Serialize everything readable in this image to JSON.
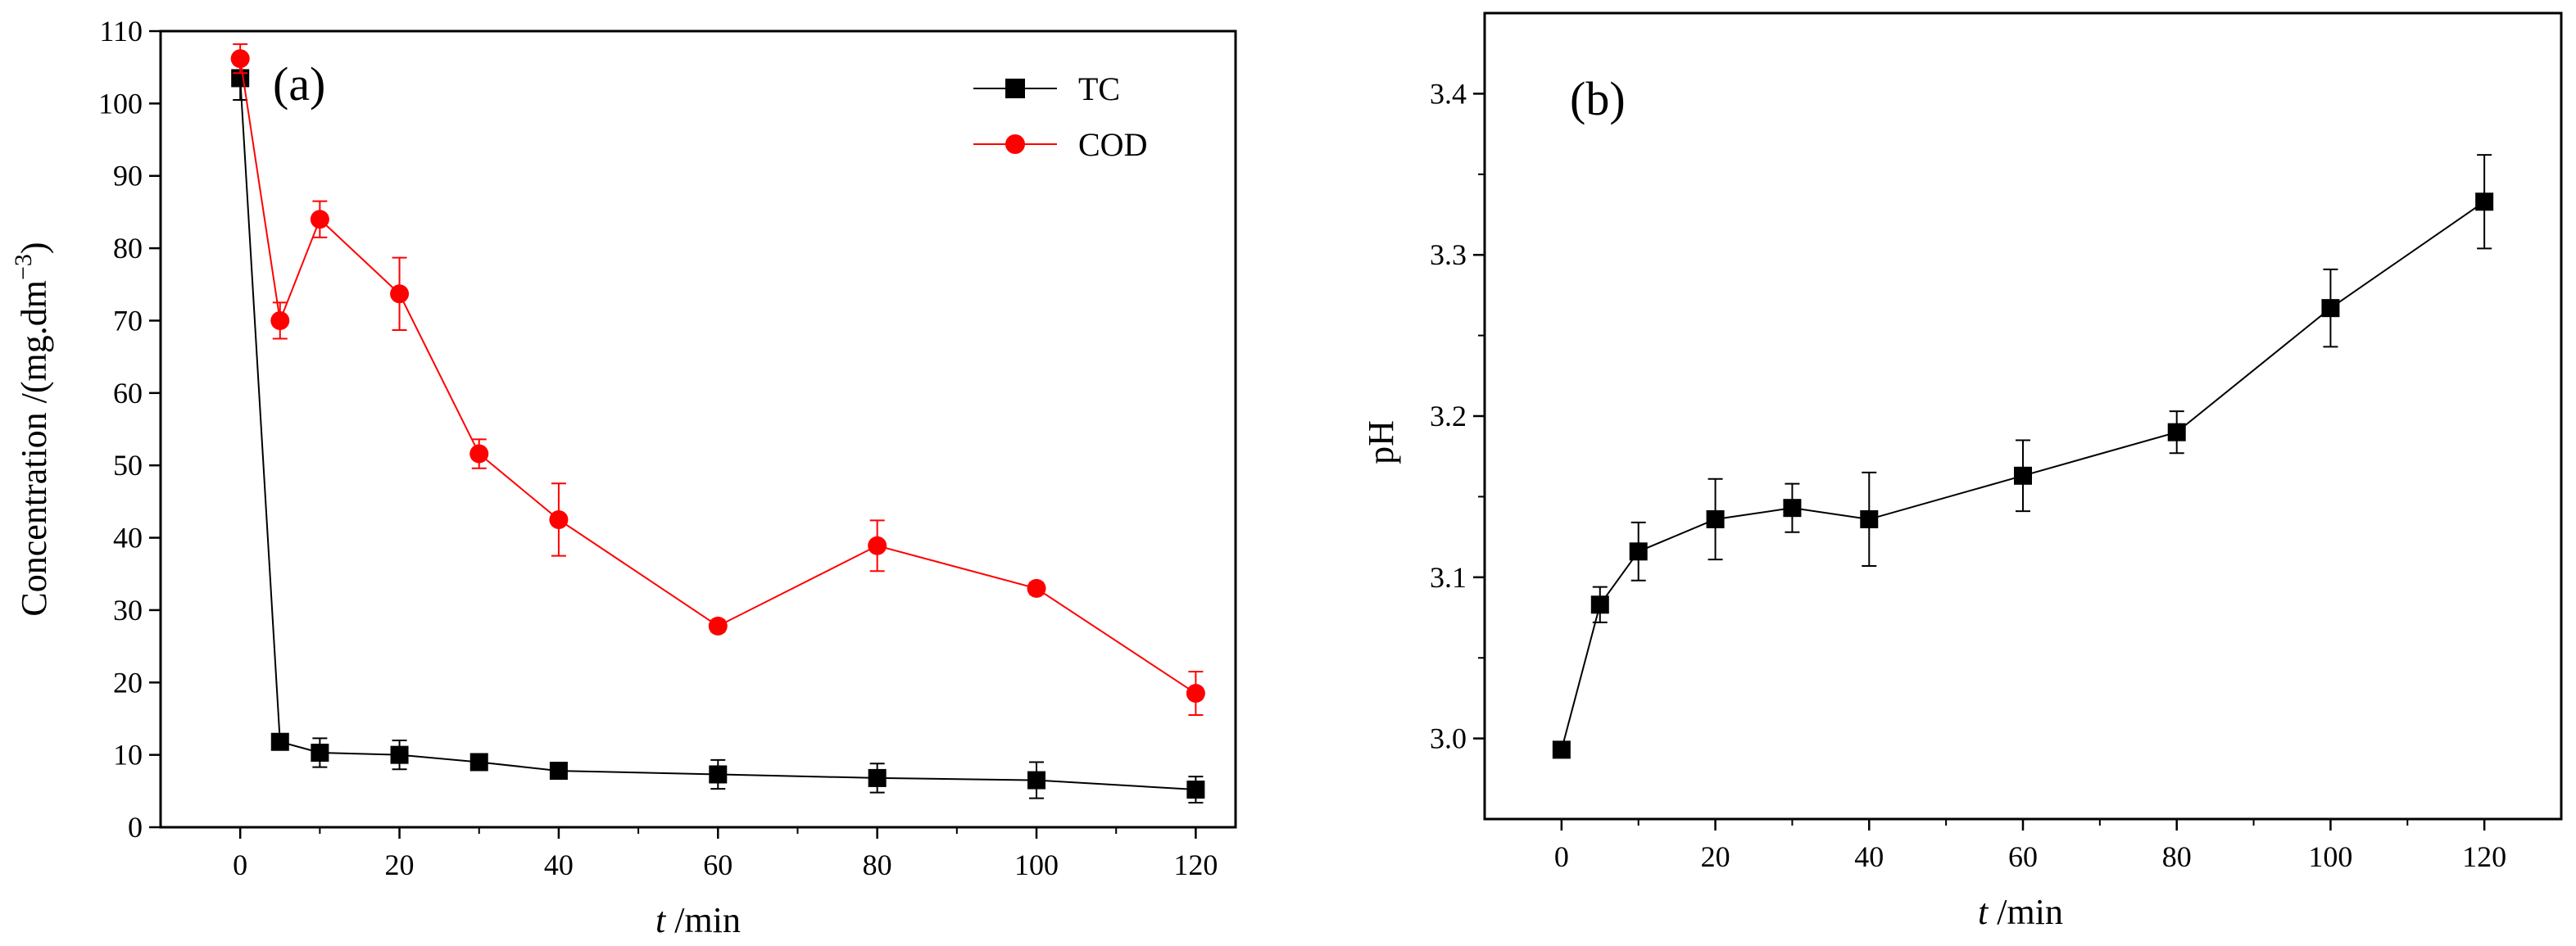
{
  "chart_data": [
    {
      "type": "line",
      "panel_label": "(a)",
      "xlabel_italic": "t",
      "xlabel_rest": " /min",
      "ylabel": "Concentration /(mg.dm",
      "ylabel_sup": "−3",
      "ylabel_close": ")",
      "xlim": [
        -10,
        125
      ],
      "ylim": [
        0,
        110
      ],
      "xticks": [
        "0",
        "20",
        "40",
        "60",
        "80",
        "100",
        "120"
      ],
      "yticks": [
        "0",
        "10",
        "20",
        "30",
        "40",
        "50",
        "60",
        "70",
        "80",
        "90",
        "100",
        "110"
      ],
      "legend_position": "top-right",
      "series": [
        {
          "name": "TC",
          "color": "#000000",
          "marker": "square",
          "x": [
            0,
            5,
            10,
            20,
            30,
            40,
            60,
            80,
            100,
            120
          ],
          "values": [
            103.5,
            11.8,
            10.3,
            10.0,
            9.0,
            7.8,
            7.3,
            6.8,
            6.5,
            5.2
          ],
          "errors": [
            3.0,
            1.0,
            2.0,
            2.0,
            1.0,
            1.0,
            2.0,
            2.0,
            2.5,
            1.8
          ]
        },
        {
          "name": "COD",
          "color": "#ff0000",
          "marker": "circle",
          "x": [
            0,
            5,
            10,
            20,
            30,
            40,
            60,
            80,
            100,
            120
          ],
          "values": [
            106.2,
            70.0,
            84.0,
            73.7,
            51.6,
            42.5,
            27.8,
            38.9,
            33.0,
            18.5
          ],
          "errors": [
            2.0,
            2.5,
            2.5,
            5.0,
            2.0,
            5.0,
            0.8,
            3.5,
            0.8,
            3.0
          ]
        }
      ]
    },
    {
      "type": "line",
      "panel_label": "(b)",
      "xlabel_italic": "t",
      "xlabel_rest": " /min",
      "ylabel": "pH",
      "xlim": [
        -10,
        130
      ],
      "ylim": [
        2.95,
        3.45
      ],
      "xticks": [
        "0",
        "20",
        "40",
        "60",
        "80",
        "100",
        "120"
      ],
      "yticks": [
        "3.0",
        "3.1",
        "3.2",
        "3.3",
        "3.4"
      ],
      "series": [
        {
          "name": "pH",
          "color": "#000000",
          "marker": "square",
          "x": [
            0,
            5,
            10,
            20,
            30,
            40,
            60,
            80,
            100,
            120
          ],
          "values": [
            2.993,
            3.083,
            3.116,
            3.136,
            3.143,
            3.136,
            3.163,
            3.19,
            3.267,
            3.333
          ],
          "errors": [
            0.0,
            0.011,
            0.018,
            0.025,
            0.015,
            0.029,
            0.022,
            0.013,
            0.024,
            0.029
          ]
        }
      ]
    }
  ]
}
